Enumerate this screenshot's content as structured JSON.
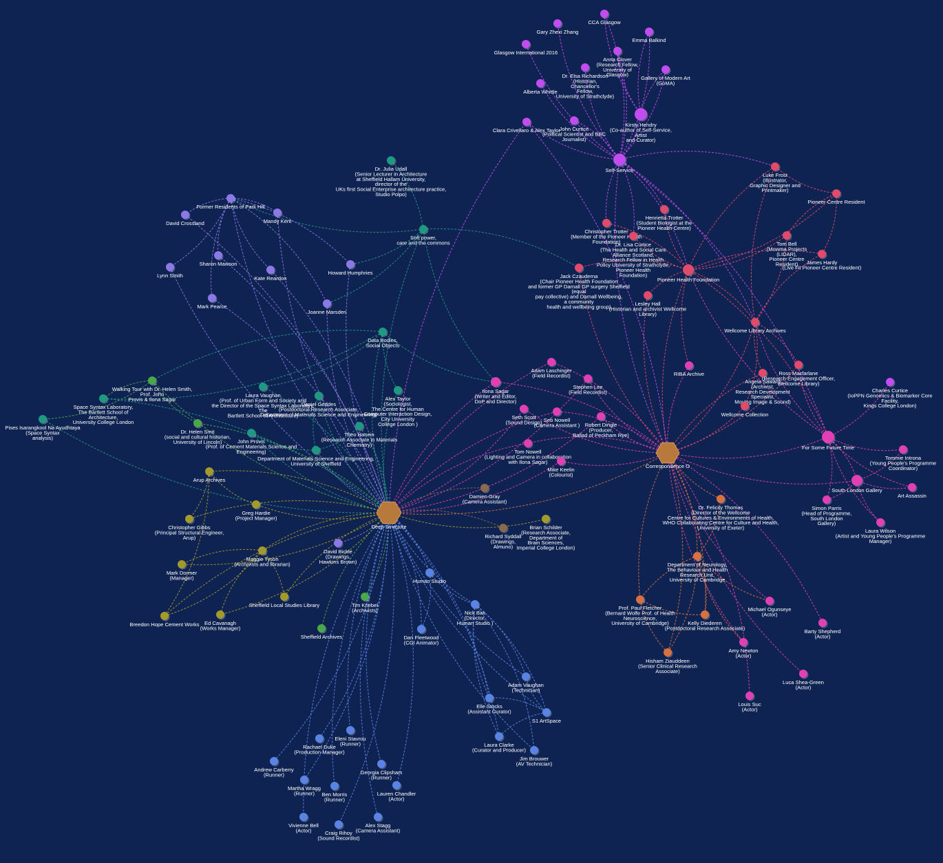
{
  "nodes": [
    {
      "label": [
        "Deep Structure"
      ]
    },
    {
      "label": [
        "Correspondence O"
      ]
    },
    {
      "label": [
        "Self-Service"
      ]
    },
    {
      "label": [
        "CCA Glasgow"
      ]
    },
    {
      "label": [
        "Gary Zhexi Zhang"
      ]
    },
    {
      "label": [
        "Emma Balkind"
      ]
    },
    {
      "label": [
        "Glasgow International 2016"
      ]
    },
    {
      "label": [
        "Anna Clover",
        "(Research Fellow,",
        "University of",
        "Glasgow)"
      ]
    },
    {
      "label": [
        "Dr. Elsa Richardson",
        "(Historian,",
        "Chancellor's",
        "Fellow,",
        "University of Strathclyde)"
      ]
    },
    {
      "label": [
        "Gallery of Modern Art",
        "(GoMA)"
      ]
    },
    {
      "label": [
        "Alberta Whittle"
      ]
    },
    {
      "label": [
        "Kirsty Hendry",
        "(Co-author of Self-Service,",
        "Artist",
        "and Curator)"
      ]
    },
    {
      "label": [
        "Clara Crivellaro & Alex Taylor"
      ]
    },
    {
      "label": [
        "John Curtice",
        "(Political Scientist and BBC",
        "Journalist)"
      ]
    },
    {
      "label": [
        "Luke Frost",
        "(Illustrator,",
        "Graphic Designer and",
        "Printmaker)"
      ]
    },
    {
      "label": [
        "Pioneer Centre Resident"
      ]
    },
    {
      "label": [
        "Henrietta Trotter",
        "(Student Biologist at the",
        "Pioneer Health Centre)"
      ]
    },
    {
      "label": [
        "Christopher Trotter",
        "(Member of the Pioneer Health",
        "Foundation)"
      ]
    },
    {
      "label": [
        "Dr. Lisa Curtice",
        "(The Health and Social Care",
        "Alliance Scotland,",
        "Research Fellow in Health",
        "Policy University of Strathclyde,",
        "Pioneer Health",
        "Foundation)"
      ]
    },
    {
      "label": [
        "Tom Bell",
        "(Mowma Projects",
        "(LIDAR),",
        "Pioneer Centre",
        "Resident)"
      ]
    },
    {
      "label": [
        "James Hardy",
        "(Live Fit Pioneer Centre Resident)"
      ]
    },
    {
      "label": [
        "Jack Czauderna",
        "(Chair Pioneer Health Foundation",
        "and former GP Darnall GP surgery Sheffield",
        "(equal",
        "pay collective) and Darnall Wellbeing,",
        "a community",
        "health and wellbeing group)"
      ]
    },
    {
      "label": [
        "Pioneer Health Foundation"
      ]
    },
    {
      "label": [
        "Lesley Hall",
        "(Historian and archivist Wellcome",
        "Library)"
      ]
    },
    {
      "label": [
        "Wellcome Library Archives"
      ]
    },
    {
      "label": [
        "RIBA Archive"
      ]
    },
    {
      "label": [
        "Ross Macfarlane",
        "(Research Engagement Officer,",
        "Wellcome Library)"
      ]
    },
    {
      "label": [
        "Angela Saward",
        "(Archivist,",
        "Research Development",
        "Specialist,",
        "Moving Image & Sound)"
      ]
    },
    {
      "label": [
        "Wellcome Collection"
      ]
    },
    {
      "label": [
        "Charles Curtice",
        "(IoPPN Genomics & Biomarker Core",
        "Facility,",
        "Kings College London)"
      ]
    },
    {
      "label": [
        "For Some Future Time"
      ]
    },
    {
      "label": [
        "Tommie Introna",
        "(Young People's Programme",
        "Coordinator)"
      ]
    },
    {
      "label": [
        "South London Gallery"
      ]
    },
    {
      "label": [
        "Art Assassin"
      ]
    },
    {
      "label": [
        "Simon Parris",
        "(Head of Programme,",
        "South London",
        "Gallery)"
      ]
    },
    {
      "label": [
        "Laura Wilson",
        "(Artist and Young People's Programme",
        "Manager)"
      ]
    },
    {
      "label": [
        "Dr. Felicity Thomas",
        "(Director of the Wellcome",
        "Centre for Cultures & Environments of Health,",
        "WHO Collaborating Centre for Culture and Health,",
        "University of Exeter)"
      ]
    },
    {
      "label": [
        "Department of Neurology,",
        "The Behaviour and Health",
        "Research Unit,",
        "University of Cambridge"
      ]
    },
    {
      "label": [
        "Michael Ogunseye",
        "(Actor)"
      ]
    },
    {
      "label": [
        "Barty Shepherd",
        "(Actor)"
      ]
    },
    {
      "label": [
        "Prof. Paul Fletcher",
        "(Bernard Wolfe Prof. of Health",
        "Neuroscience,",
        "University of Cambridge)"
      ]
    },
    {
      "label": [
        "Kelly Diederen",
        "(Postdoctoral Research Associate)"
      ]
    },
    {
      "label": [
        "Amy Newton",
        "(Actor)"
      ]
    },
    {
      "label": [
        "Hisham Ziauddeen",
        "(Senior Clinical Research",
        "Associate)"
      ]
    },
    {
      "label": [
        "Luca Shea-Green",
        "(Actor)"
      ]
    },
    {
      "label": [
        "Louis Suc",
        "(Actor)"
      ]
    },
    {
      "label": [
        "Adam Laschinger",
        "(Field Recordist)"
      ]
    },
    {
      "label": [
        "Stephen Lee",
        "(Field Recordist)"
      ]
    },
    {
      "label": [
        "Ilona Sagar",
        "(Writer and Editor,",
        "DoP and Director)"
      ]
    },
    {
      "label": [
        "Seth Scott",
        "(Sound Design)"
      ]
    },
    {
      "label": [
        "Seb Nowell",
        "(Camera Assistant )"
      ]
    },
    {
      "label": [
        "Robert Dingle",
        "(Producer,",
        "Ballad of Peckham Rye)"
      ]
    },
    {
      "label": [
        "Tom Nowell",
        "(Lighting and Camera in collaboration",
        "with Ilona Sagar)"
      ]
    },
    {
      "label": [
        "Mike Keelin",
        "(Colourist)"
      ]
    },
    {
      "label": [
        "Damien Gray",
        "(Camera Assistant)"
      ]
    },
    {
      "label": [
        "Brian Schilder",
        "(Research Associate,",
        "Department of",
        "Brain Sciences,",
        "Imperial College London)"
      ]
    },
    {
      "label": [
        "Richard Syddall",
        "(Drawings,",
        "Almuno)"
      ]
    },
    {
      "label": [
        "Soft power,",
        "care and the commons"
      ]
    },
    {
      "label": [
        "Dr. Julia Udall",
        "(Senior Lecturer in Architecture",
        "at Sheffield Hallam University,",
        "director of the",
        "UKs first Social Enterprise architecture practice,",
        "Studio Polpo)"
      ]
    },
    {
      "label": [
        "Data Bodies,",
        "Social Objects"
      ]
    },
    {
      "label": [
        "Alex Taylor",
        "(Sociologist,",
        "The Centre for Human",
        "Computer Interaction Design,",
        "City University",
        "College London )"
      ]
    },
    {
      "label": [
        "Former Residents of Park Hill"
      ]
    },
    {
      "label": [
        "David Crossland"
      ]
    },
    {
      "label": [
        "Mandy Kent"
      ]
    },
    {
      "label": [
        "Sharon Mawson"
      ]
    },
    {
      "label": [
        "Lynn Smith"
      ]
    },
    {
      "label": [
        "Kate Reardon"
      ]
    },
    {
      "label": [
        "Howard Humphries"
      ]
    },
    {
      "label": [
        "Mark Pearce"
      ]
    },
    {
      "label": [
        "Joanne Marsden"
      ]
    },
    {
      "label": [
        "Walking Tour with Dr. Helen Smith,",
        "Prof. John",
        "Provis & Ilona Sagar"
      ]
    },
    {
      "label": [
        "Space Syntax Laboratory,",
        "The Bartlett School of",
        "Architecture,",
        "University College London"
      ]
    },
    {
      "label": [
        "Pises Isarangkool Na Ayudhtaya",
        "(Space Syntax",
        "analysis)"
      ]
    },
    {
      "label": [
        "Laura Vaughan",
        "(Prof. of Urban Form and Society and",
        "the Director of the Space Syntax Laboratory,",
        "The",
        "Bartlett School of Architecture)"
      ]
    },
    {
      "label": [
        "Daniel Geddes",
        "(Postdoctoral Research Associate,",
        "Department of Materials Science and Engineering)"
      ]
    },
    {
      "label": [
        "Dr. Helen Smit",
        "(social and cultural historian,",
        "University of Lincoln)"
      ]
    },
    {
      "label": [
        "John Provis",
        "(Prof. of Cement Materials Science and",
        "Engineering)"
      ]
    },
    {
      "label": [
        "Theo Hanein",
        "(Research Associate in Materials",
        "Chemistry)"
      ]
    },
    {
      "label": [
        "Department of Materials Science and Engineering,",
        "University of Sheffield"
      ]
    },
    {
      "label": [
        "Arup Archives"
      ]
    },
    {
      "label": [
        "Greg Hardie",
        "(Project Manager)"
      ]
    },
    {
      "label": [
        "Christopher Gibbs",
        "(Principal Structural Engineer,",
        "Arup)"
      ]
    },
    {
      "label": [
        "David Bickle",
        "(Drawings,",
        "Hawkins Brown)"
      ]
    },
    {
      "label": [
        "Maggie Tyson",
        "(Archivists and librarian)"
      ]
    },
    {
      "label": [
        "Mark Dormer",
        "(Manager)"
      ]
    },
    {
      "label": [
        "Sheffield Local Studies Library"
      ]
    },
    {
      "label": [
        "Tim Knebel",
        "(Archivists)"
      ]
    },
    {
      "label": [
        "Breedon Hope Cement Works"
      ]
    },
    {
      "label": [
        "Ed Cavanagh",
        "(Works Manager)"
      ]
    },
    {
      "label": [
        "Sheffield Archives"
      ]
    },
    {
      "label": [
        "Human Studio"
      ]
    },
    {
      "label": [
        "Nick Bax",
        "(Director,",
        "Human Studio )"
      ]
    },
    {
      "label": [
        "Dan Fleetwood",
        "(CGI Animator)"
      ]
    },
    {
      "label": [
        "Adam Vaughan",
        "(Technician)"
      ]
    },
    {
      "label": [
        "Elle Stocks",
        "(Assistant Curator)"
      ]
    },
    {
      "label": [
        "S1 ArtSpace"
      ]
    },
    {
      "label": [
        "Laura Clarke",
        "(Curator and Producer)"
      ]
    },
    {
      "label": [
        "Jim Brouwer",
        "(AV Technician)"
      ]
    },
    {
      "label": [
        "Rachael Duke",
        "(Production Manager)"
      ]
    },
    {
      "label": [
        "Eleni Stavrou",
        "(Runner)"
      ]
    },
    {
      "label": [
        "Andrew Carberry",
        "(Runner)"
      ]
    },
    {
      "label": [
        "Georgia Clipsham",
        "(Runner)"
      ]
    },
    {
      "label": [
        "Martha Wragg",
        "(Runner)"
      ]
    },
    {
      "label": [
        "Ben Morris",
        "(Runner)"
      ]
    },
    {
      "label": [
        "Lauren Chandler",
        "(Actor)"
      ]
    },
    {
      "label": [
        "Vivienne Bell",
        "(Actor)"
      ]
    },
    {
      "label": [
        "Craig Rihoy",
        "(Sound Recordist)"
      ]
    },
    {
      "label": [
        "Alex Stagg",
        "(Camera Assistant)"
      ]
    }
  ]
}
